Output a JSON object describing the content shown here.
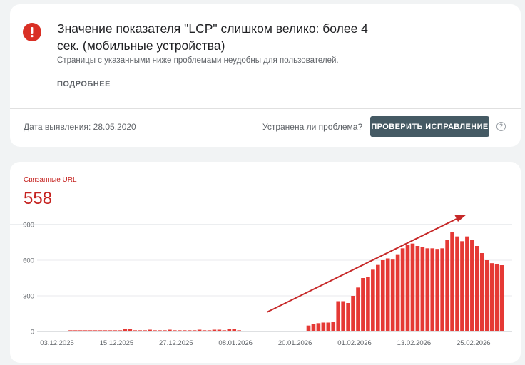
{
  "issue": {
    "title": "Значение показателя \"LCP\" слишком велико: более 4 сек. (мобильные устройства)",
    "subtitle": "Страницы с указанными ниже проблемами неудобны для пользователей.",
    "learn_more": "ПОДРОБНЕЕ",
    "detected": "Дата выявления: 28.05.2020",
    "fixed_question": "Устранена ли проблема?",
    "validate_button": "ПРОВЕРИТЬ ИСПРАВЛЕНИЕ",
    "help": "?"
  },
  "metric": {
    "label": "Связанные URL",
    "value": "558"
  },
  "icons": [
    "error-icon",
    "help-icon",
    "trend-arrow"
  ],
  "colors": {
    "error": "#d93025",
    "bar": "#e53935",
    "metric": "#c5221f",
    "button": "#455a64",
    "arrow": "#c62828"
  },
  "chart_data": {
    "type": "bar",
    "ylim": [
      0,
      900
    ],
    "y_ticks": [
      0,
      300,
      600,
      900
    ],
    "x_tick_labels": [
      "03.12.2025",
      "15.12.2025",
      "27.12.2025",
      "08.01.2026",
      "20.01.2026",
      "01.02.2026",
      "13.02.2026",
      "25.02.2026"
    ],
    "x_tick_index": [
      0,
      12,
      24,
      36,
      48,
      60,
      72,
      84
    ],
    "values": [
      0,
      0,
      10,
      10,
      10,
      10,
      10,
      10,
      10,
      10,
      10,
      10,
      10,
      20,
      20,
      10,
      10,
      10,
      15,
      10,
      10,
      10,
      15,
      10,
      10,
      10,
      10,
      10,
      15,
      10,
      10,
      15,
      15,
      10,
      20,
      20,
      10,
      5,
      5,
      5,
      5,
      5,
      5,
      5,
      5,
      5,
      5,
      5,
      0,
      0,
      50,
      60,
      70,
      75,
      75,
      80,
      255,
      255,
      240,
      300,
      370,
      450,
      460,
      520,
      560,
      600,
      615,
      605,
      650,
      700,
      730,
      740,
      720,
      710,
      700,
      700,
      695,
      700,
      770,
      840,
      800,
      760,
      800,
      770,
      720,
      660,
      600,
      575,
      570,
      558
    ]
  }
}
